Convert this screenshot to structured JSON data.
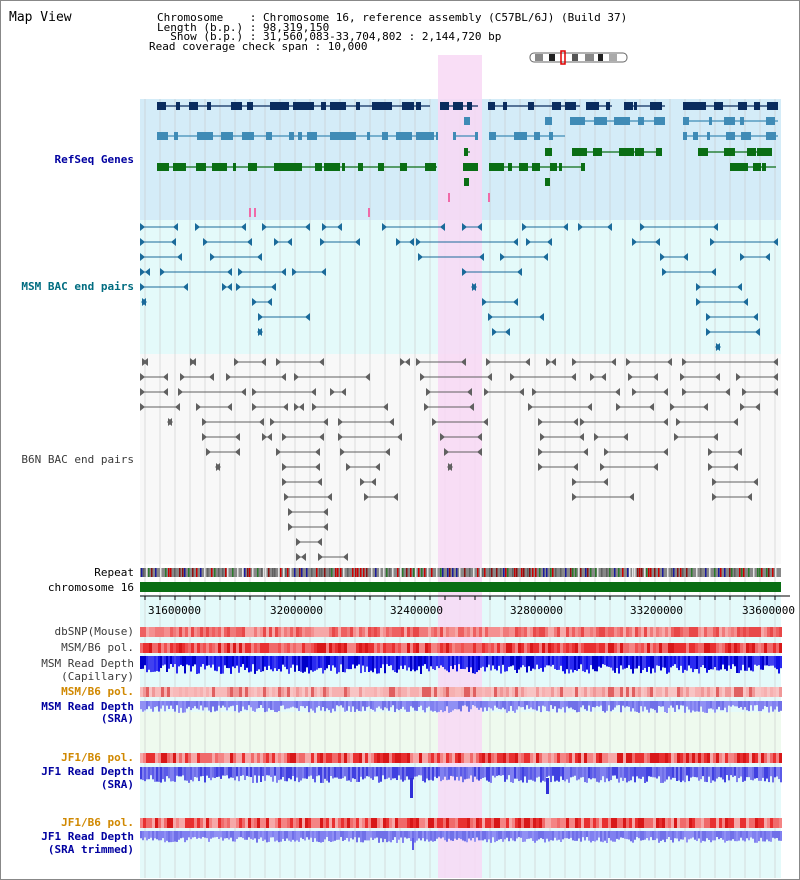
{
  "map_view_title": "Map View",
  "header": {
    "chromosome_line": "Chromosome    : Chromosome 16, reference assembly (C57BL/6J) (Build 37)",
    "length_line": "Length (b.p.) : 98,319,150",
    "show_line": "  Show (b.p.) : 31,560,083-33,704,802 : 2,144,720 bp",
    "coverage_line": "Read coverage check span : 10,000"
  },
  "track_labels": {
    "refseq_genes": "RefSeq Genes",
    "msm_bac": "MSM BAC end pairs",
    "b6n_bac": "B6N BAC end pairs",
    "repeat": "Repeat",
    "chromosome": "chromosome 16",
    "dbsnp": "dbSNP(Mouse)",
    "msm_b6_pol_1": "MSM/B6 pol.",
    "msm_read_depth_cap_1": "MSM Read Depth",
    "msm_read_depth_cap_2": "(Capillary)",
    "msm_b6_pol_2": "MSM/B6 pol.",
    "msm_read_depth_sra_1": "MSM Read Depth",
    "msm_read_depth_sra_2": "(SRA)",
    "jf1_b6_pol_1": "JF1/B6 pol.",
    "jf1_read_depth_sra_1": "JF1 Read Depth",
    "jf1_read_depth_sra_2": "(SRA)",
    "jf1_b6_pol_2": "JF1/B6 pol.",
    "jf1_read_depth_trim_1": "JF1 Read Depth",
    "jf1_read_depth_trim_2": "(SRA trimmed)"
  },
  "axis_ticks": [
    "31600000",
    "32000000",
    "32400000",
    "32800000",
    "33200000",
    "33600000"
  ],
  "colors": {
    "highlight": "#f8d8f4",
    "refseq_bg": "#d4ecf8",
    "msm_bac_bg": "#e4fafa",
    "b6n_bg": "#f8f8f8",
    "gene_dark": "#0a2c5e",
    "gene_mid": "#3f8bb6",
    "gene_green": "#0a6e14",
    "chromosome_bar": "#0a6e14",
    "depth_dark": "#1010e8",
    "depth_light": "#8080f0"
  }
}
